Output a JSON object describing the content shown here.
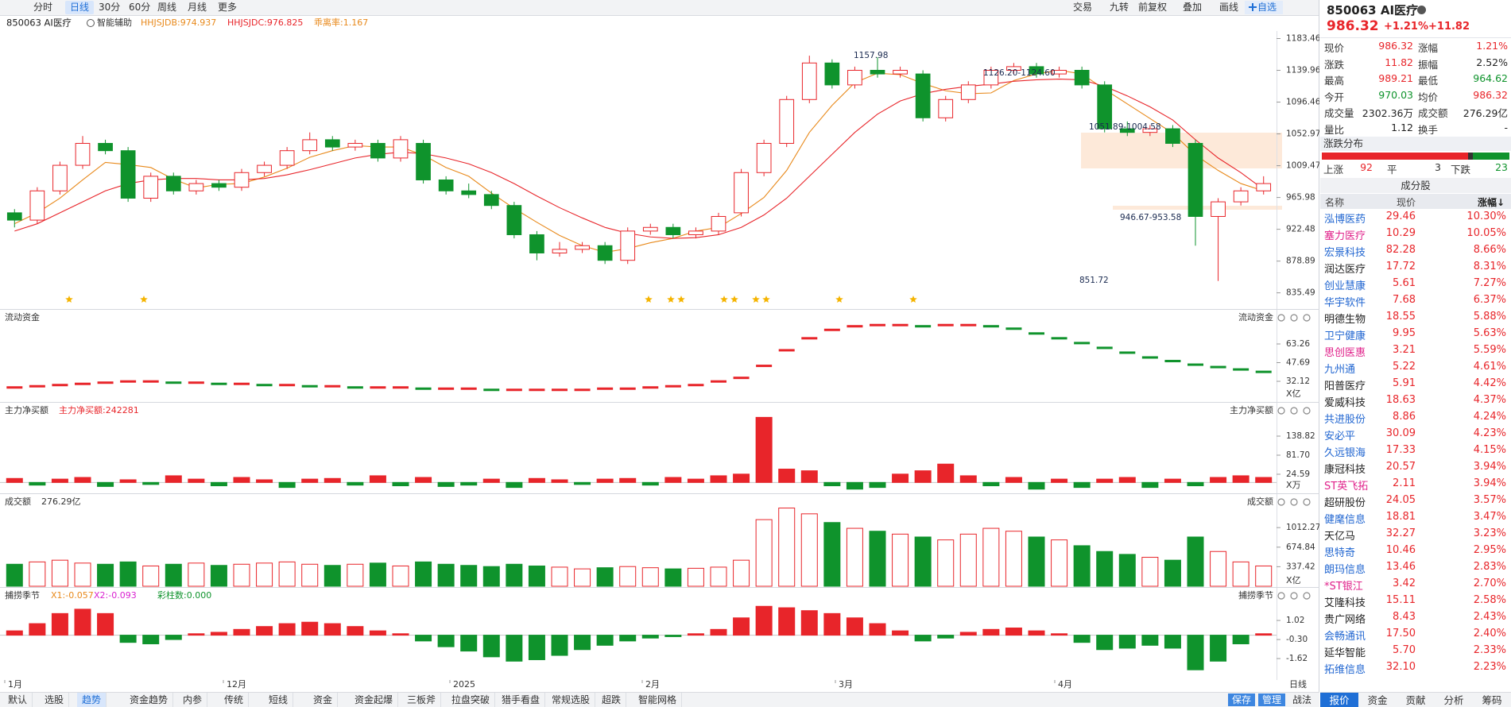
{
  "toolbar": {
    "left": [
      "分时",
      "日线",
      "30分",
      "60分",
      "周线",
      "月线",
      "更多"
    ],
    "active": 1,
    "right": [
      "交易",
      "九转",
      "前复权",
      "叠加",
      "画线",
      "自选"
    ]
  },
  "chart_data": [
    {
      "type": "candlestick",
      "title": "850063 AI医疗",
      "assist": "智能辅助",
      "open": [
        945,
        935,
        975,
        1010,
        1040,
        1030,
        965,
        995,
        975,
        985,
        980,
        1000,
        1010,
        1030,
        1045,
        1035,
        1040,
        1020,
        1040,
        990,
        975,
        970,
        955,
        915,
        890,
        895,
        900,
        880,
        920,
        925,
        915,
        920,
        945,
        1000,
        1040,
        1100,
        1150,
        1120,
        1140,
        1135,
        1135,
        1075,
        1100,
        1120,
        1140,
        1145,
        1135,
        1140,
        1120,
        1060,
        1055,
        1060,
        1040,
        940,
        960,
        975
      ],
      "high": [
        950,
        980,
        1015,
        1050,
        1045,
        1035,
        1000,
        1000,
        990,
        990,
        1005,
        1015,
        1035,
        1055,
        1050,
        1045,
        1045,
        1050,
        1045,
        995,
        985,
        975,
        960,
        920,
        905,
        905,
        905,
        925,
        930,
        930,
        925,
        945,
        1005,
        1045,
        1105,
        1160,
        1155,
        1145,
        1157.98,
        1145,
        1140,
        1105,
        1125,
        1145,
        1150,
        1150,
        1145,
        1145,
        1125,
        1070,
        1065,
        1065,
        1045,
        965,
        980,
        995
      ],
      "low": [
        925,
        930,
        970,
        1005,
        1025,
        960,
        960,
        970,
        970,
        975,
        975,
        995,
        1005,
        1025,
        1030,
        1030,
        1015,
        1015,
        985,
        970,
        965,
        950,
        910,
        880,
        885,
        890,
        875,
        875,
        915,
        910,
        910,
        915,
        940,
        995,
        1035,
        1095,
        1115,
        1115,
        1130,
        1130,
        1070,
        1070,
        1095,
        1115,
        1135,
        1130,
        1130,
        1115,
        1055,
        1050,
        1050,
        1035,
        900,
        851.72,
        955,
        970
      ],
      "close": [
        935,
        975,
        1010,
        1040,
        1030,
        965,
        995,
        975,
        985,
        980,
        1000,
        1010,
        1030,
        1045,
        1035,
        1040,
        1020,
        1045,
        990,
        975,
        970,
        955,
        915,
        890,
        895,
        900,
        880,
        920,
        925,
        915,
        920,
        940,
        1000,
        1040,
        1100,
        1150,
        1120,
        1140,
        1135,
        1140,
        1075,
        1100,
        1120,
        1140,
        1145,
        1135,
        1140,
        1120,
        1060,
        1055,
        1060,
        1040,
        940,
        960,
        975,
        985
      ],
      "up_color": "#e8252a",
      "down_color": "#0f932c",
      "series": [
        {
          "name": "HHJSJDB:974.937",
          "color": "#e8891b",
          "values": [
            930,
            945,
            965,
            990,
            1014,
            1011,
            1007,
            991,
            979,
            984,
            985,
            994,
            1006,
            1021,
            1030,
            1037,
            1035,
            1035,
            1024,
            1007,
            995,
            972,
            951,
            932,
            914,
            900,
            891,
            896,
            904,
            910,
            920,
            925,
            944,
            966,
            1003,
            1055,
            1092,
            1123,
            1136,
            1134,
            1122,
            1112,
            1108,
            1109,
            1126,
            1135,
            1140,
            1135,
            1114,
            1094,
            1074,
            1054,
            1024,
            1003,
            985,
            975
          ]
        },
        {
          "name": "HHJSJDC:976.825",
          "color": "#e8252a",
          "values": [
            920,
            930,
            945,
            960,
            975,
            985,
            990,
            992,
            992,
            990,
            990,
            992,
            997,
            1004,
            1012,
            1020,
            1025,
            1028,
            1026,
            1020,
            1012,
            1000,
            985,
            968,
            952,
            938,
            925,
            917,
            912,
            910,
            911,
            915,
            925,
            942,
            965,
            995,
            1025,
            1055,
            1080,
            1098,
            1108,
            1114,
            1118,
            1121,
            1125,
            1127,
            1128,
            1127,
            1118,
            1105,
            1090,
            1072,
            1045,
            1020,
            1000,
            977
          ]
        }
      ],
      "extra_label": {
        "text": "乖离率:1.167",
        "color": "#e8891b"
      },
      "annotations": [
        "1157.98",
        "1126.20-1124.60",
        "1051.89-1004.58",
        "946.67-953.58",
        "851.72"
      ],
      "ylim": [
        816.6,
        1193.8
      ],
      "yticks": [
        835.49,
        878.89,
        922.48,
        965.98,
        1009.47,
        1052.97,
        1096.46,
        1139.96,
        1183.46
      ],
      "x_labels": [
        "1月",
        "12月",
        "2025",
        "2月",
        "3月",
        "4月"
      ],
      "period": "日线"
    },
    {
      "type": "bar",
      "style": "dash",
      "color_by": "trend",
      "title": "流动资金",
      "up_color": "#e8252a",
      "down_color": "#0f932c",
      "values": [
        27,
        28,
        29,
        30,
        31,
        32,
        32,
        31,
        31,
        30,
        30,
        29,
        29,
        28,
        28,
        27,
        27,
        27,
        26,
        26,
        26,
        25,
        25,
        25,
        25,
        25,
        26,
        26,
        27,
        28,
        29,
        32,
        35,
        45,
        58,
        68,
        75,
        78,
        79,
        79,
        78,
        79,
        79,
        78,
        76,
        72,
        68,
        64,
        60,
        56,
        52,
        49,
        46,
        44,
        42,
        40
      ],
      "ylim": [
        16.9,
        90.4
      ],
      "yticks": [
        32.12,
        47.69,
        63.26
      ],
      "unit": "X亿"
    },
    {
      "type": "bar",
      "color_by": "sign",
      "title": "主力净买额",
      "subtitle": "主力净买额:242281",
      "up_color": "#e8252a",
      "down_color": "#0f932c",
      "values": [
        12,
        -8,
        10,
        15,
        -12,
        8,
        -6,
        20,
        10,
        -10,
        15,
        8,
        -15,
        10,
        12,
        -8,
        20,
        -10,
        15,
        -12,
        -8,
        10,
        -15,
        12,
        8,
        -6,
        10,
        12,
        -8,
        15,
        10,
        20,
        25,
        195,
        40,
        35,
        -10,
        -20,
        -15,
        25,
        35,
        55,
        20,
        -10,
        15,
        -20,
        10,
        -15,
        10,
        15,
        -15,
        10,
        -10,
        15,
        20,
        15
      ],
      "ylim": [
        -25.4,
        234
      ],
      "yticks": [
        24.59,
        {
          "value": 81.7,
          "label": "81.70"
        },
        138.82
      ],
      "unit": "X万"
    },
    {
      "type": "bar",
      "color_by": "candle",
      "title": "成交额",
      "subtitle": "276.29亿",
      "up_color": "#e8252a",
      "down_color": "#0f932c",
      "values": [
        380,
        420,
        450,
        400,
        380,
        420,
        350,
        380,
        400,
        360,
        380,
        400,
        420,
        380,
        360,
        380,
        400,
        350,
        420,
        380,
        360,
        340,
        380,
        350,
        330,
        300,
        320,
        340,
        320,
        300,
        310,
        330,
        450,
        1150,
        1350,
        1250,
        1100,
        1000,
        950,
        900,
        850,
        800,
        900,
        1000,
        950,
        850,
        800,
        700,
        600,
        550,
        500,
        450,
        850,
        600,
        420,
        350
      ],
      "ylim": [
        0,
        1563
      ],
      "yticks": [
        337.42,
        674.84,
        1012.27
      ],
      "unit": "X亿"
    },
    {
      "type": "bar",
      "color_by": "sign",
      "title": "捕捞季节",
      "up_color": "#e8252a",
      "down_color": "#0f932c",
      "legend": [
        {
          "text": "X1:-0.057",
          "color": "#e8891b"
        },
        {
          "text": "X2:-0.093",
          "color": "#d91fd0"
        },
        {
          "text": "彩柱数:0.000",
          "color": "#0f932c"
        }
      ],
      "values": [
        0.3,
        0.8,
        1.5,
        1.8,
        1.5,
        -0.5,
        -0.6,
        -0.3,
        0.1,
        0.2,
        0.4,
        0.6,
        0.8,
        0.9,
        0.8,
        0.6,
        0.3,
        0.1,
        -0.4,
        -0.8,
        -1.1,
        -1.5,
        -1.8,
        -1.7,
        -1.4,
        -1.0,
        -0.7,
        -0.4,
        -0.2,
        -0.1,
        0.1,
        0.4,
        1.2,
        2.0,
        1.9,
        1.7,
        1.5,
        1.2,
        0.8,
        0.3,
        -0.4,
        -0.2,
        0.2,
        0.4,
        0.5,
        0.3,
        0.1,
        -0.5,
        -1.0,
        -0.9,
        -0.7,
        -0.9,
        -2.4,
        -1.8,
        -0.6,
        0.1
      ],
      "ylim": [
        -3.05,
        3.17
      ],
      "yticks": [
        -1.62,
        {
          "value": -0.3,
          "label": "-0.30"
        },
        1.02
      ]
    }
  ],
  "quote": {
    "code_name": "850063 AI医疗",
    "price": "986.32",
    "change_pct": "+1.21%",
    "change": "+11.82",
    "fields": [
      {
        "label": "现价",
        "value": "986.32",
        "color": "#e8252a"
      },
      {
        "label": "涨幅",
        "value": "1.21%",
        "color": "#e8252a"
      },
      {
        "label": "涨跌",
        "value": "11.82",
        "color": "#e8252a"
      },
      {
        "label": "振幅",
        "value": "2.52%",
        "color": "#222"
      },
      {
        "label": "最高",
        "value": "989.21",
        "color": "#e8252a"
      },
      {
        "label": "最低",
        "value": "964.62",
        "color": "#0f932c"
      },
      {
        "label": "今开",
        "value": "970.03",
        "color": "#0f932c"
      },
      {
        "label": "均价",
        "value": "986.32",
        "color": "#e8252a"
      },
      {
        "label": "成交量",
        "value": "2302.36万",
        "color": "#222"
      },
      {
        "label": "成交额",
        "value": "276.29亿",
        "color": "#222"
      },
      {
        "label": "量比",
        "value": "1.12",
        "color": "#222"
      },
      {
        "label": "换手",
        "value": "-",
        "color": "#222"
      }
    ]
  },
  "distribution": {
    "title": "涨跌分布",
    "up_label": "上涨",
    "up": 92,
    "flat_label": "平",
    "flat": 3,
    "down_label": "下跌",
    "down": 23
  },
  "constituents": {
    "title": "成分股",
    "headers": [
      "名称",
      "现价",
      "涨幅↓"
    ],
    "rows": [
      {
        "name": "泓博医药",
        "price": "29.46",
        "pct": "10.30%",
        "color": "#2166d1"
      },
      {
        "name": "塞力医疗",
        "price": "10.29",
        "pct": "10.05%",
        "color": "#e0218a"
      },
      {
        "name": "宏景科技",
        "price": "82.28",
        "pct": "8.66%",
        "color": "#2166d1"
      },
      {
        "name": "润达医疗",
        "price": "17.72",
        "pct": "8.31%",
        "color": "#222"
      },
      {
        "name": "创业慧康",
        "price": "5.61",
        "pct": "7.27%",
        "color": "#2166d1"
      },
      {
        "name": "华宇软件",
        "price": "7.68",
        "pct": "6.37%",
        "color": "#2166d1"
      },
      {
        "name": "明德生物",
        "price": "18.55",
        "pct": "5.88%",
        "color": "#222"
      },
      {
        "name": "卫宁健康",
        "price": "9.95",
        "pct": "5.63%",
        "color": "#2166d1"
      },
      {
        "name": "思创医惠",
        "price": "3.21",
        "pct": "5.59%",
        "color": "#e0218a"
      },
      {
        "name": "九州通",
        "price": "5.22",
        "pct": "4.61%",
        "color": "#2166d1"
      },
      {
        "name": "阳普医疗",
        "price": "5.91",
        "pct": "4.42%",
        "color": "#222"
      },
      {
        "name": "爱威科技",
        "price": "18.63",
        "pct": "4.37%",
        "color": "#222"
      },
      {
        "name": "共进股份",
        "price": "8.86",
        "pct": "4.24%",
        "color": "#2166d1"
      },
      {
        "name": "安必平",
        "price": "30.09",
        "pct": "4.23%",
        "color": "#2166d1"
      },
      {
        "name": "久远银海",
        "price": "17.33",
        "pct": "4.15%",
        "color": "#2166d1"
      },
      {
        "name": "康冠科技",
        "price": "20.57",
        "pct": "3.94%",
        "color": "#222"
      },
      {
        "name": "ST英飞拓",
        "price": "2.11",
        "pct": "3.94%",
        "color": "#e0218a"
      },
      {
        "name": "超研股份",
        "price": "24.05",
        "pct": "3.57%",
        "color": "#222"
      },
      {
        "name": "健麾信息",
        "price": "18.81",
        "pct": "3.47%",
        "color": "#2166d1"
      },
      {
        "name": "天亿马",
        "price": "32.27",
        "pct": "3.23%",
        "color": "#222"
      },
      {
        "name": "思特奇",
        "price": "10.46",
        "pct": "2.95%",
        "color": "#2166d1"
      },
      {
        "name": "朗玛信息",
        "price": "13.46",
        "pct": "2.83%",
        "color": "#2166d1"
      },
      {
        "name": "*ST银江",
        "price": "3.42",
        "pct": "2.70%",
        "color": "#e0218a"
      },
      {
        "name": "艾隆科技",
        "price": "15.11",
        "pct": "2.58%",
        "color": "#222"
      },
      {
        "name": "贵广网络",
        "price": "8.43",
        "pct": "2.43%",
        "color": "#222"
      },
      {
        "name": "会畅通讯",
        "price": "17.50",
        "pct": "2.40%",
        "color": "#2166d1"
      },
      {
        "name": "延华智能",
        "price": "5.70",
        "pct": "2.33%",
        "color": "#222"
      },
      {
        "name": "拓维信息",
        "price": "32.10",
        "pct": "2.23%",
        "color": "#2166d1"
      }
    ]
  },
  "bottom_tabs": {
    "items": [
      "默认",
      "选股",
      "趋势",
      "资金趋势",
      "内参",
      "传统",
      "短线",
      "资金",
      "资金起爆",
      "三板斧",
      "拉盘突破",
      "猎手看盘",
      "常规选股",
      "超跌",
      "智能网格"
    ],
    "active": 2,
    "right": [
      "保存",
      "管理",
      "战法"
    ]
  },
  "quote_tabs": {
    "items": [
      "报价",
      "资金",
      "贡献",
      "分析",
      "筹码"
    ],
    "active": 0
  }
}
